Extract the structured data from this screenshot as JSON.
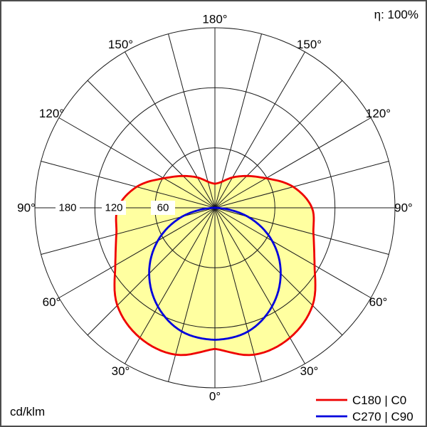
{
  "header": {
    "efficiency": "η: 100%"
  },
  "footer": {
    "unit": "cd/klm"
  },
  "legend": {
    "entries": [
      {
        "label": "C180 | C0",
        "color": "#ee0000"
      },
      {
        "label": "C270 | C90",
        "color": "#0000dd"
      }
    ]
  },
  "chart_data": {
    "type": "polar",
    "subtype": "luminous-intensity-distribution",
    "title": "",
    "unit": "cd/klm",
    "efficiency_percent": 100,
    "orientation": "0 degrees at nadir (bottom), 180 degrees at zenith (top), symmetric left/right",
    "radial_axis": {
      "rings": [
        60,
        120,
        180
      ],
      "ring_labels": [
        "180",
        "120",
        "60"
      ],
      "max": 180
    },
    "angle_ticks": [
      "0°",
      "30°",
      "60°",
      "90°",
      "120°",
      "150°",
      "180°"
    ],
    "angle_tick_deg": [
      0,
      30,
      60,
      90,
      120,
      150,
      180
    ],
    "spoke_step_deg": 15,
    "series": [
      {
        "name": "C180 | C0",
        "color": "#ee0000",
        "fill": "#ffffa0",
        "gamma_deg": [
          0,
          15,
          30,
          45,
          60,
          75,
          90,
          105,
          120,
          135,
          150,
          165,
          180
        ],
        "values_cd_per_klm": [
          141,
          152,
          150,
          138,
          115,
          102,
          97,
          81,
          59,
          45,
          35,
          27,
          24
        ],
        "symmetric": true
      },
      {
        "name": "C270 | C90",
        "color": "#0000dd",
        "fill": null,
        "gamma_deg": [
          0,
          15,
          30,
          45,
          60,
          75,
          90
        ],
        "values_cd_per_klm": [
          132,
          128,
          114,
          93,
          66,
          34,
          0
        ],
        "symmetric": true
      }
    ]
  }
}
